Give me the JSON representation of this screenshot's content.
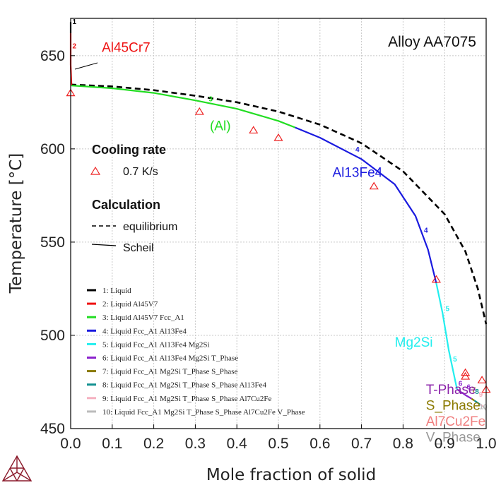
{
  "chart_data": {
    "type": "line",
    "title": "Alloy AA7075",
    "xlabel": "Mole fraction of solid",
    "ylabel": "Temperature [°C]",
    "xlim": [
      0.0,
      1.0
    ],
    "ylim": [
      450,
      670
    ],
    "x_ticks": [
      0.0,
      0.1,
      0.2,
      0.3,
      0.4,
      0.5,
      0.6,
      0.7,
      0.8,
      0.9,
      1.0
    ],
    "y_ticks": [
      450,
      500,
      550,
      600,
      650
    ],
    "x_tick_labels": [
      "0.0",
      "0.1",
      "0.2",
      "0.3",
      "0.4",
      "0.5",
      "0.6",
      "0.7",
      "0.8",
      "0.9",
      "1.0"
    ],
    "y_tick_labels": [
      "450",
      "500",
      "550",
      "600",
      "650"
    ],
    "grid": true,
    "equilibrium": {
      "label": "equilibrium",
      "color": "#000000",
      "points": [
        [
          0.0,
          634.5
        ],
        [
          0.1,
          633.5
        ],
        [
          0.2,
          631.5
        ],
        [
          0.3,
          628.5
        ],
        [
          0.4,
          625
        ],
        [
          0.5,
          620
        ],
        [
          0.6,
          613
        ],
        [
          0.7,
          603
        ],
        [
          0.8,
          588
        ],
        [
          0.9,
          565
        ],
        [
          0.95,
          545
        ],
        [
          0.98,
          525
        ],
        [
          1.0,
          506
        ]
      ]
    },
    "scheil_segments": [
      {
        "id": "1",
        "color": "#000000",
        "points": [
          [
            0.0,
            668
          ],
          [
            0.0,
            662
          ]
        ]
      },
      {
        "id": "2",
        "color": "#ee1111",
        "points": [
          [
            0.0,
            662
          ],
          [
            0.0,
            645
          ],
          [
            0.002,
            634
          ]
        ]
      },
      {
        "id": "3",
        "color": "#22dd22",
        "points": [
          [
            0.002,
            634
          ],
          [
            0.1,
            632.5
          ],
          [
            0.2,
            630
          ],
          [
            0.3,
            626
          ],
          [
            0.4,
            621.5
          ],
          [
            0.5,
            615
          ],
          [
            0.54,
            611.5
          ]
        ]
      },
      {
        "id": "4",
        "color": "#1a1adf",
        "points": [
          [
            0.54,
            611.5
          ],
          [
            0.6,
            606
          ],
          [
            0.7,
            594.5
          ],
          [
            0.78,
            581
          ],
          [
            0.83,
            564
          ],
          [
            0.86,
            546
          ],
          [
            0.88,
            528
          ]
        ]
      },
      {
        "id": "5",
        "color": "#22eeee",
        "points": [
          [
            0.88,
            528
          ],
          [
            0.895,
            512
          ],
          [
            0.91,
            492
          ],
          [
            0.93,
            471
          ]
        ]
      },
      {
        "id": "6",
        "color": "#8b22cc",
        "points": [
          [
            0.93,
            471
          ],
          [
            0.95,
            468
          ],
          [
            0.965,
            466
          ]
        ]
      },
      {
        "id": "7",
        "color": "#8b7a00",
        "points": [
          [
            0.965,
            466
          ],
          [
            0.972,
            465
          ]
        ]
      },
      {
        "id": "8",
        "color": "#119090",
        "points": [
          [
            0.972,
            465
          ],
          [
            0.985,
            463
          ]
        ]
      },
      {
        "id": "9",
        "color": "#f5b0c0",
        "points": [
          [
            0.985,
            463
          ],
          [
            0.992,
            462
          ]
        ]
      },
      {
        "id": "10",
        "color": "#bbbbbb",
        "points": [
          [
            0.992,
            462
          ],
          [
            1.0,
            460
          ]
        ]
      }
    ],
    "segment_labels": [
      {
        "text": "1",
        "x": 0.009,
        "y": 667,
        "color": "#000000"
      },
      {
        "text": "2",
        "x": 0.009,
        "y": 654,
        "color": "#ee1111"
      },
      {
        "text": "3",
        "x": 0.337,
        "y": 625.5,
        "color": "#22dd22"
      },
      {
        "text": "4",
        "x": 0.69,
        "y": 598.5,
        "color": "#1a1adf"
      },
      {
        "text": "4",
        "x": 0.855,
        "y": 555,
        "color": "#1a1adf"
      },
      {
        "text": "5",
        "x": 0.907,
        "y": 513,
        "color": "#22eeee"
      },
      {
        "text": "5",
        "x": 0.925,
        "y": 486,
        "color": "#22eeee"
      },
      {
        "text": "6",
        "x": 0.938,
        "y": 473,
        "color": "#8b22cc"
      },
      {
        "text": "6",
        "x": 0.958,
        "y": 471,
        "color": "#8b22cc"
      },
      {
        "text": "7",
        "x": 0.97,
        "y": 469.5,
        "color": "#8b7a00"
      },
      {
        "text": "8",
        "x": 0.978,
        "y": 468.5,
        "color": "#119090"
      },
      {
        "text": "9",
        "x": 0.987,
        "y": 467,
        "color": "#f5b0c0"
      },
      {
        "text": "10",
        "x": 0.993,
        "y": 460.5,
        "color": "#bbbbbb"
      }
    ],
    "measurements": {
      "label": "0.7 K/s",
      "color": "#ee2222",
      "points": [
        [
          0.0,
          630
        ],
        [
          0.31,
          620
        ],
        [
          0.44,
          610
        ],
        [
          0.5,
          606
        ],
        [
          0.73,
          580
        ],
        [
          0.88,
          530
        ],
        [
          0.95,
          480
        ],
        [
          0.95,
          478
        ],
        [
          0.99,
          476
        ],
        [
          1.0,
          471
        ]
      ]
    },
    "phase_annotations": [
      {
        "text": "Al45Cr7",
        "x": 0.075,
        "y": 652,
        "color": "#ee1111",
        "size": 19
      },
      {
        "text": "(Al)",
        "x": 0.335,
        "y": 610,
        "color": "#22dd22",
        "size": 19
      },
      {
        "text": "Al13Fe4",
        "x": 0.63,
        "y": 585,
        "color": "#1a1adf",
        "size": 19
      },
      {
        "text": "Mg2Si",
        "x": 0.78,
        "y": 494,
        "color": "#22eeee",
        "size": 19
      },
      {
        "text": "T-Phase",
        "x": 0.855,
        "y": 468.5,
        "color": "#8b22aa",
        "size": 19
      },
      {
        "text": "S_Phase",
        "x": 0.855,
        "y": 460,
        "color": "#8b7a00",
        "size": 19
      },
      {
        "text": "Al7Cu2Fe",
        "x": 0.855,
        "y": 451.5,
        "color": "#f08080",
        "size": 19
      },
      {
        "text": "V_Phase",
        "x": 0.855,
        "y": 443,
        "color": "#999999",
        "size": 19
      }
    ],
    "legend_blocks": {
      "cooling_rate_title": "Cooling rate",
      "cooling_rate_label": "0.7 K/s",
      "calculation_title": "Calculation",
      "equilibrium_label": "equilibrium",
      "scheil_label": "Scheil"
    },
    "segment_legend": [
      {
        "label": "1: Liquid",
        "color": "#000000"
      },
      {
        "label": "2: Liquid Al45V7",
        "color": "#ee1111"
      },
      {
        "label": "3: Liquid Al45V7 Fcc_A1",
        "color": "#22dd22"
      },
      {
        "label": "4: Liquid Fcc_A1 Al13Fe4",
        "color": "#1a1adf"
      },
      {
        "label": "5: Liquid Fcc_A1 Al13Fe4 Mg2Si",
        "color": "#22eeee"
      },
      {
        "label": "6: Liquid Fcc_A1 Al13Fe4 Mg2Si T_Phase",
        "color": "#8b22cc"
      },
      {
        "label": "7: Liquid Fcc_A1 Mg2Si T_Phase S_Phase",
        "color": "#8b7a00"
      },
      {
        "label": "8: Liquid Fcc_A1 Mg2Si T_Phase S_Phase Al13Fe4",
        "color": "#119090"
      },
      {
        "label": "9: Liquid Fcc_A1 Mg2Si T_Phase S_Phase Al7Cu2Fe",
        "color": "#f5b0c0"
      },
      {
        "label": "10: Liquid Fcc_A1 Mg2Si T_Phase S_Phase Al7Cu2Fe V_Phase",
        "color": "#bbbbbb"
      }
    ]
  },
  "colors": {
    "logo": "#8b1a2b",
    "grid": "#c8c8c8",
    "frame": "#000000"
  },
  "icons": {
    "logo": "thermo-calc-logo-icon"
  }
}
